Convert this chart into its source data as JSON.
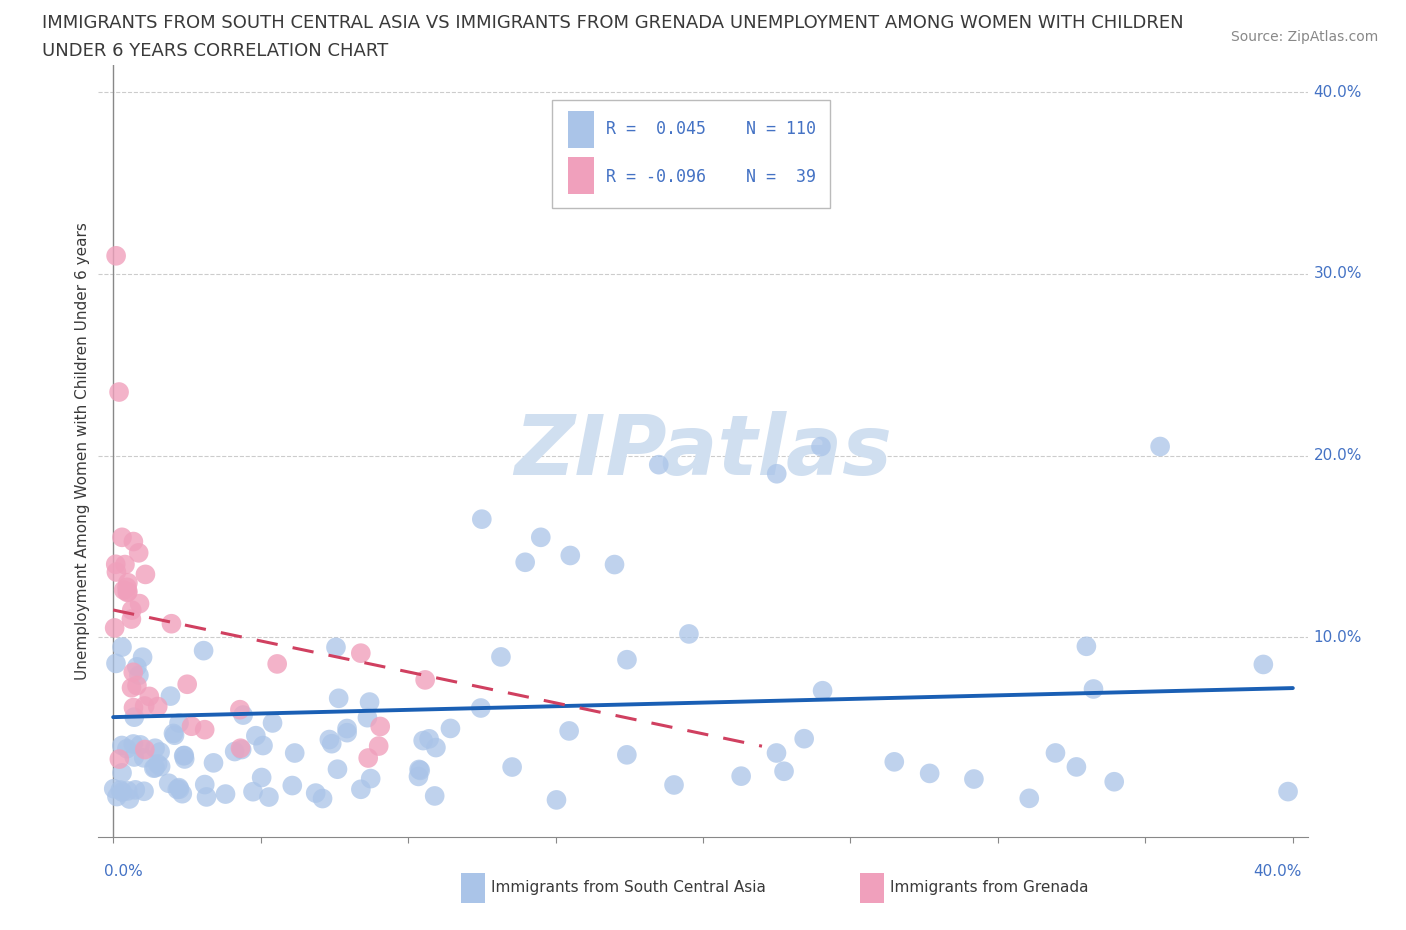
{
  "title_line1": "IMMIGRANTS FROM SOUTH CENTRAL ASIA VS IMMIGRANTS FROM GRENADA UNEMPLOYMENT AMONG WOMEN WITH CHILDREN",
  "title_line2": "UNDER 6 YEARS CORRELATION CHART",
  "source": "Source: ZipAtlas.com",
  "ylabel": "Unemployment Among Women with Children Under 6 years",
  "blue_color": "#aac4e8",
  "pink_color": "#f0a0bc",
  "blue_line_color": "#1a5fb4",
  "pink_line_color": "#d04060",
  "axis_color": "#888888",
  "grid_color": "#cccccc",
  "text_color": "#3a3a3a",
  "label_color": "#4472c4",
  "source_color": "#888888",
  "watermark_color": "#d0dff0",
  "title_fontsize": 13,
  "source_fontsize": 10,
  "ylabel_fontsize": 11,
  "tick_label_fontsize": 11,
  "legend_fontsize": 12,
  "watermark_fontsize": 60,
  "xlim": [
    0.0,
    0.4
  ],
  "ylim": [
    0.0,
    0.4
  ],
  "xticks": [
    0.0,
    0.05,
    0.1,
    0.15,
    0.2,
    0.25,
    0.3,
    0.35,
    0.4
  ],
  "yticks_right": [
    0.1,
    0.2,
    0.3,
    0.4
  ],
  "ytick_labels_right": [
    "10.0%",
    "20.0%",
    "30.0%",
    "40.0%"
  ],
  "legend_r1": "R =  0.045",
  "legend_n1": "N = 110",
  "legend_r2": "R = -0.096",
  "legend_n2": "N =  39",
  "blue_label": "Immigrants from South Central Asia",
  "pink_label": "Immigrants from Grenada",
  "watermark": "ZIPatlas",
  "blue_trend_x0": 0.0,
  "blue_trend_x1": 0.4,
  "blue_trend_y0": 0.056,
  "blue_trend_y1": 0.072,
  "pink_trend_x0": 0.0,
  "pink_trend_x1": 0.22,
  "pink_trend_y0": 0.115,
  "pink_trend_y1": 0.04
}
